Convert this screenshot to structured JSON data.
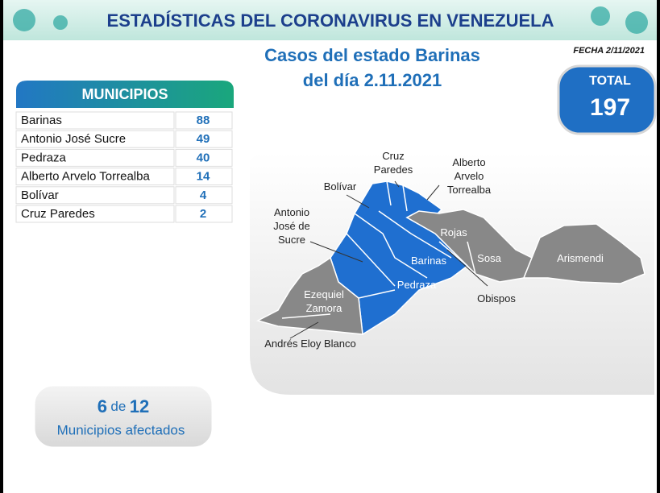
{
  "header": {
    "title": "ESTADÍSTICAS DEL CORONAVIRUS EN VENEZUELA",
    "date": "FECHA 2/11/2021"
  },
  "subtitle": [
    "Casos del estado Barinas",
    "del día 2.11.2021"
  ],
  "total": {
    "label": "TOTAL",
    "value": 197
  },
  "table": {
    "header": "MUNICIPIOS",
    "rows": [
      [
        "Barinas",
        88
      ],
      [
        "Antonio José Sucre",
        49
      ],
      [
        "Pedraza",
        40
      ],
      [
        "Alberto Arvelo Torrealba",
        14
      ],
      [
        "Bolívar",
        4
      ],
      [
        "Cruz Paredes",
        2
      ]
    ]
  },
  "summary": {
    "affected": 6,
    "connector": "de",
    "total": 12,
    "label": "Municipios afectados"
  },
  "map": {
    "labels": [
      [
        "Cruz",
        "Paredes"
      ],
      [
        "Alberto",
        "Arvelo",
        "Torrealba"
      ],
      [
        "Bolívar"
      ],
      [
        "Antonio",
        "José de",
        "Sucre"
      ],
      [
        "Rojas"
      ],
      [
        "Barinas"
      ],
      [
        "Sosa"
      ],
      [
        "Arismendi"
      ],
      [
        "Pedraza"
      ],
      [
        "Ezequiel",
        "Zamora"
      ],
      [
        "Obispos"
      ],
      [
        "Andrés Eloy Blanco"
      ]
    ]
  }
}
